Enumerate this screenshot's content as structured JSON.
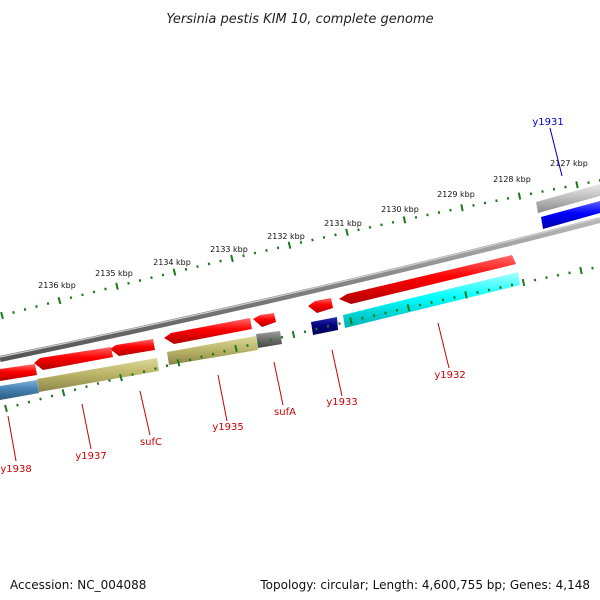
{
  "title": "Yersinia pestis KIM 10, complete genome",
  "footer": {
    "accession": "Accession: NC_004088",
    "summary": "Topology: circular; Length: 4,600,755 bp; Genes: 4,148"
  },
  "scale": {
    "tick_labels": [
      "2127 kbp",
      "2128 kbp",
      "2129 kbp",
      "2130 kbp",
      "2131 kbp",
      "2132 kbp",
      "2133 kbp",
      "2134 kbp",
      "2135 kbp",
      "2136 kbp"
    ]
  },
  "genes": [
    {
      "name": "y1931",
      "color": "#0000cc"
    },
    {
      "name": "y1932",
      "color": "#cc0000"
    },
    {
      "name": "y1933",
      "color": "#cc0000"
    },
    {
      "name": "sufA",
      "color": "#cc0000"
    },
    {
      "name": "y1935",
      "color": "#cc0000"
    },
    {
      "name": "sufC",
      "color": "#cc0000"
    },
    {
      "name": "y1937",
      "color": "#cc0000"
    },
    {
      "name": "y1938",
      "color": "#cc0000"
    }
  ],
  "colors": {
    "backbone": "#808080",
    "tick": "#1a7a1a",
    "feature_red": "#ff0000",
    "feature_cyan": "#00ffff",
    "feature_olive": "#bdb76b",
    "feature_steel": "#4682b4",
    "feature_navy": "#000080",
    "feature_blue": "#0000ff",
    "feature_gray": "#707070",
    "feature_silver": "#c0c0c0"
  }
}
